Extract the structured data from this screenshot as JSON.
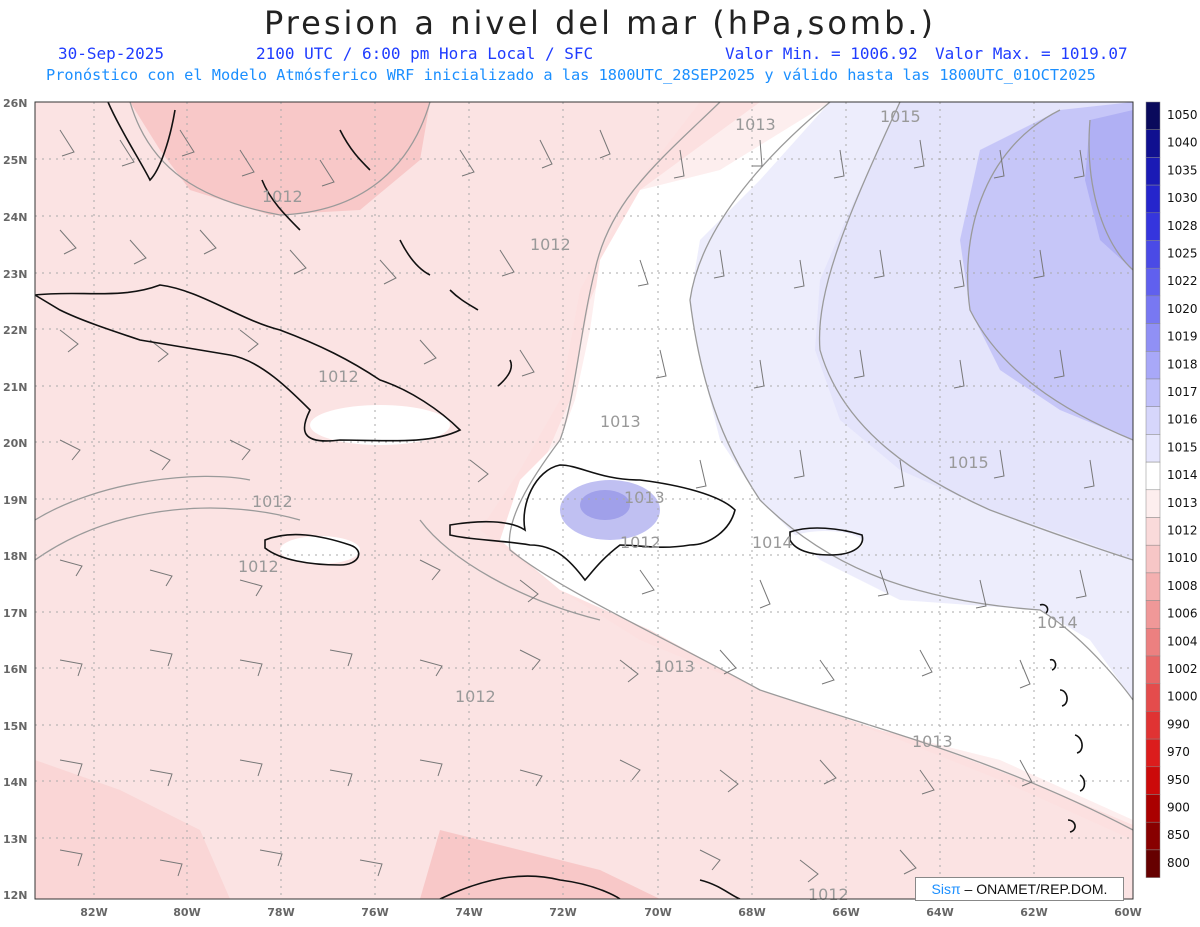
{
  "header": {
    "title": "Presion a nivel del mar (hPa,somb.)",
    "date": "30-Sep-2025",
    "time": "2100 UTC / 6:00 pm Hora Local / SFC",
    "min_label": "Valor Min. = 1006.92",
    "max_label": "Valor Max. = 1019.07",
    "model_info": "Pronóstico con el Modelo Atmósferico WRF inicializado a las 1800UTC_28SEP2025 y válido hasta las  1800UTC_01OCT2025"
  },
  "axes": {
    "lat_labels": [
      "26N",
      "25N",
      "24N",
      "23N",
      "22N",
      "21N",
      "20N",
      "19N",
      "18N",
      "17N",
      "16N",
      "15N",
      "14N",
      "13N",
      "12N"
    ],
    "lon_labels": [
      "82W",
      "80W",
      "78W",
      "76W",
      "74W",
      "72W",
      "70W",
      "68W",
      "66W",
      "64W",
      "62W",
      "60W"
    ]
  },
  "contour_labels": [
    {
      "text": "1013",
      "pos": "top-center"
    },
    {
      "text": "1015",
      "pos": "top-right"
    },
    {
      "text": "1012",
      "pos": "upper-left"
    },
    {
      "text": "1012",
      "pos": "bahamas"
    },
    {
      "text": "1012",
      "pos": "cuba"
    },
    {
      "text": "1013",
      "pos": "windward"
    },
    {
      "text": "1015",
      "pos": "east"
    },
    {
      "text": "1012",
      "pos": "jamaica"
    },
    {
      "text": "1012",
      "pos": "west"
    },
    {
      "text": "1013",
      "pos": "hispaniola"
    },
    {
      "text": "1012",
      "pos": "south-hispaniola"
    },
    {
      "text": "1014",
      "pos": "puerto-rico"
    },
    {
      "text": "1014",
      "pos": "lesser-antilles"
    },
    {
      "text": "1013",
      "pos": "central-south"
    },
    {
      "text": "1012",
      "pos": "south-west"
    },
    {
      "text": "1013",
      "pos": "south-east"
    },
    {
      "text": "1012",
      "pos": "bottom"
    }
  ],
  "colorbar": {
    "labels": [
      "1050",
      "1040",
      "1035",
      "1030",
      "1028",
      "1025",
      "1022",
      "1020",
      "1019",
      "1018",
      "1017",
      "1016",
      "1015",
      "1014",
      "1013",
      "1012",
      "1010",
      "1008",
      "1006",
      "1004",
      "1002",
      "1000",
      "990",
      "970",
      "950",
      "900",
      "850",
      "800"
    ],
    "colors": [
      "#0a0a5c",
      "#101090",
      "#1a1ab5",
      "#2525cc",
      "#3535dd",
      "#4a4ae6",
      "#6060ee",
      "#7878f2",
      "#9090f5",
      "#a8a8f8",
      "#c0c0fa",
      "#d6d6fb",
      "#e6e6fd",
      "#ffffff",
      "#fdeeee",
      "#fadada",
      "#f7c6c6",
      "#f4b0b0",
      "#f09898",
      "#ec8080",
      "#e86666",
      "#e44c4c",
      "#e03333",
      "#dc1c1c",
      "#cc0a0a",
      "#aa0000",
      "#880000",
      "#660000"
    ]
  },
  "credit": {
    "sis": "Sisπ",
    "rest": " – ONAMET/REP.DOM."
  }
}
